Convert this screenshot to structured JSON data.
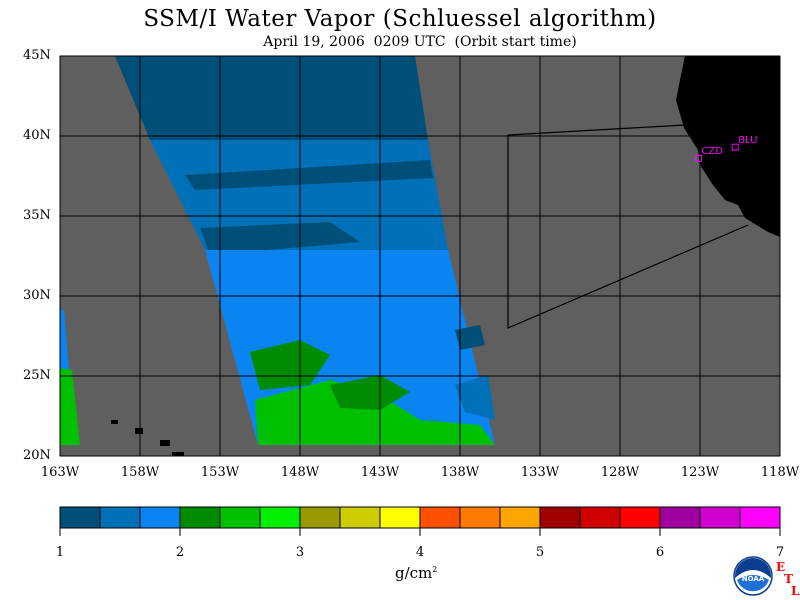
{
  "title": "SSM/I Water Vapor (Schluessel algorithm)",
  "subtitle": "April 19, 2006  0209 UTC  (Orbit start time)",
  "map": {
    "lon_range": [
      -163,
      -118
    ],
    "lat_range": [
      20,
      45
    ],
    "colors": {
      "background": "#5f5f5f",
      "land": "#000000",
      "grid": "#000000",
      "station": "#ff00ff"
    },
    "lat_ticks": [
      {
        "value": 45,
        "label": "45N"
      },
      {
        "value": 40,
        "label": "40N"
      },
      {
        "value": 35,
        "label": "35N"
      },
      {
        "value": 30,
        "label": "30N"
      },
      {
        "value": 25,
        "label": "25N"
      },
      {
        "value": 20,
        "label": "20N"
      }
    ],
    "lon_ticks": [
      {
        "value": -163,
        "label": "163W"
      },
      {
        "value": -158,
        "label": "158W"
      },
      {
        "value": -153,
        "label": "153W"
      },
      {
        "value": -148,
        "label": "148W"
      },
      {
        "value": -143,
        "label": "143W"
      },
      {
        "value": -138,
        "label": "138W"
      },
      {
        "value": -133,
        "label": "133W"
      },
      {
        "value": -128,
        "label": "128W"
      },
      {
        "value": -123,
        "label": "123W"
      },
      {
        "value": -118,
        "label": "118W"
      }
    ],
    "stations": [
      {
        "label": "CZD",
        "lon": -123.1,
        "lat": 38.6
      },
      {
        "label": "BLU",
        "lon": -120.8,
        "lat": 39.3
      }
    ]
  },
  "colorbar": {
    "colors": [
      "#004f79",
      "#0070b8",
      "#0a84f0",
      "#008c00",
      "#00c000",
      "#00f000",
      "#9a9a00",
      "#cccc00",
      "#ffff00",
      "#ff5000",
      "#ff7a00",
      "#ffa500",
      "#a00000",
      "#d00000",
      "#ff0000",
      "#a000a0",
      "#d000d0",
      "#ff00ff"
    ],
    "range": [
      1,
      7
    ],
    "ticks": [
      "1",
      "2",
      "3",
      "4",
      "5",
      "6",
      "7"
    ],
    "unit": "g/cm",
    "unit_exp": "2"
  },
  "logo": {
    "text": "NOAA",
    "etl": [
      "E",
      "T",
      "L"
    ]
  }
}
